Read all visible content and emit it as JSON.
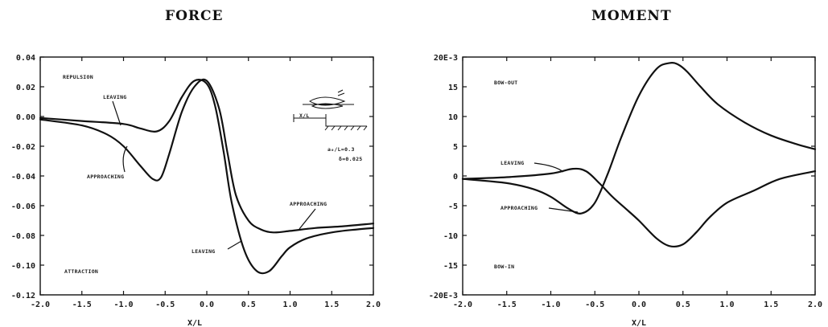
{
  "chart_data": [
    {
      "type": "line",
      "title": "FORCE",
      "xlabel": "X/L",
      "ylabel": "",
      "xlim": [
        -2.0,
        2.0
      ],
      "ylim": [
        -0.12,
        0.04
      ],
      "x_ticks": [
        "-2.0",
        "-1.5",
        "-1.0",
        "-0.5",
        "0.0",
        "0.5",
        "1.0",
        "1.5",
        "2.0"
      ],
      "y_ticks": [
        "0.04",
        "0.02",
        "0.00",
        "-0.02",
        "-0.04",
        "-0.06",
        "-0.08",
        "-0.10",
        "-0.12"
      ],
      "series": [
        {
          "name": "LEAVING",
          "x": [
            -2.0,
            -1.5,
            -1.0,
            -0.8,
            -0.6,
            -0.45,
            -0.3,
            -0.15,
            0.0,
            0.1,
            0.2,
            0.3,
            0.45,
            0.6,
            0.75,
            0.9,
            1.0,
            1.2,
            1.5,
            1.8,
            2.0
          ],
          "y": [
            -0.001,
            -0.003,
            -0.005,
            -0.008,
            -0.01,
            -0.003,
            0.013,
            0.024,
            0.022,
            0.007,
            -0.023,
            -0.058,
            -0.09,
            -0.104,
            -0.104,
            -0.094,
            -0.088,
            -0.082,
            -0.078,
            -0.076,
            -0.075
          ]
        },
        {
          "name": "APPROACHING",
          "x": [
            -2.0,
            -1.5,
            -1.2,
            -1.0,
            -0.8,
            -0.65,
            -0.55,
            -0.45,
            -0.3,
            -0.15,
            0.0,
            0.15,
            0.25,
            0.35,
            0.5,
            0.65,
            0.8,
            1.0,
            1.3,
            1.6,
            2.0
          ],
          "y": [
            -0.002,
            -0.006,
            -0.012,
            -0.02,
            -0.033,
            -0.042,
            -0.041,
            -0.025,
            0.003,
            0.02,
            0.024,
            0.005,
            -0.025,
            -0.053,
            -0.07,
            -0.076,
            -0.078,
            -0.077,
            -0.075,
            -0.074,
            -0.072
          ]
        }
      ],
      "annotations": {
        "repulsion": "REPULSION",
        "attraction": "ATTRACTION",
        "leaving": "LEAVING",
        "approaching_left": "APPROACHING",
        "approaching_right": "APPROACHING",
        "leaving_lower": "LEAVING",
        "inset_xl": "X/L",
        "inset_param1": "a₀/L=0.3",
        "inset_param2": "δ=0.025"
      }
    },
    {
      "type": "line",
      "title": "MOMENT",
      "xlabel": "X/L",
      "ylabel": "",
      "xlim": [
        -2.0,
        2.0
      ],
      "ylim": [
        -20,
        20
      ],
      "x_ticks": [
        "-2.0",
        "-1.5",
        "-1.0",
        "-0.5",
        "0.0",
        "0.5",
        "1.0",
        "1.5",
        "2.0"
      ],
      "y_ticks": [
        "20E-3",
        "15",
        "10",
        "5",
        "0",
        "-5",
        "-10",
        "-15",
        "-20E-3"
      ],
      "series": [
        {
          "name": "LEAVING",
          "x": [
            -2.0,
            -1.5,
            -1.0,
            -0.75,
            -0.6,
            -0.45,
            -0.3,
            -0.15,
            0.0,
            0.2,
            0.35,
            0.5,
            0.65,
            0.8,
            1.0,
            1.3,
            1.6,
            2.0
          ],
          "y": [
            -0.5,
            -0.2,
            0.4,
            1.2,
            0.8,
            -1.2,
            -3.5,
            -5.5,
            -7.5,
            -10.5,
            -11.8,
            -11.5,
            -9.5,
            -7,
            -4.5,
            -2.5,
            -0.5,
            0.8
          ]
        },
        {
          "name": "APPROACHING",
          "x": [
            -2.0,
            -1.5,
            -1.2,
            -1.0,
            -0.8,
            -0.65,
            -0.5,
            -0.35,
            -0.2,
            0.0,
            0.2,
            0.35,
            0.45,
            0.55,
            0.7,
            0.9,
            1.2,
            1.5,
            1.8,
            2.0
          ],
          "y": [
            -0.5,
            -1.2,
            -2.2,
            -3.5,
            -5.5,
            -6.3,
            -4.5,
            0.5,
            6.5,
            13.5,
            18,
            19,
            18.7,
            17.5,
            15,
            12,
            9,
            6.8,
            5.3,
            4.5
          ]
        }
      ],
      "annotations": {
        "bow_out": "BOW-OUT",
        "bow_in": "BOW-IN",
        "leaving": "LEAVING",
        "approaching": "APPROACHING"
      }
    }
  ]
}
